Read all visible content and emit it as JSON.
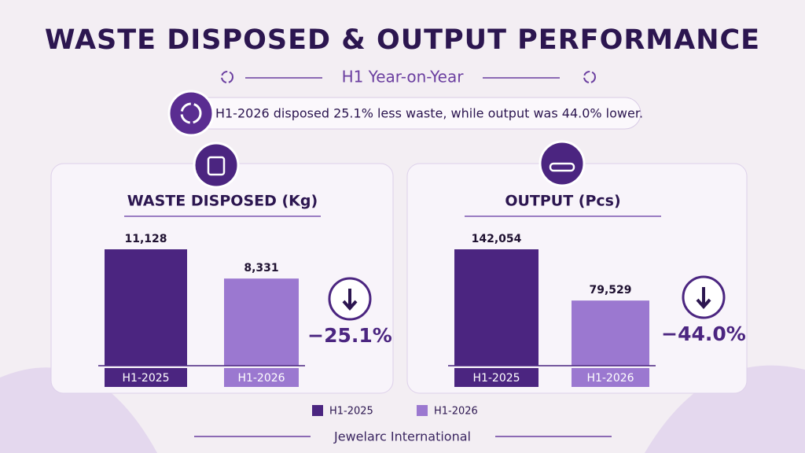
{
  "header": {
    "title": "WASTE DISPOSED & OUTPUT PERFORMANCE",
    "subtitle": "H1 Year-on-Year",
    "summary": "H1-2026 disposed 25.1% less waste, while output was 44.0% lower."
  },
  "chart_data": [
    {
      "type": "bar",
      "title": "WASTE DISPOSED (Kg)",
      "categories": [
        "H1-2025",
        "H1-2026"
      ],
      "values": [
        11128,
        8331
      ],
      "value_labels": [
        "11,128",
        "8,331"
      ],
      "colors": [
        "#4b2580",
        "#9b78d0"
      ],
      "annotation": "−25.1%"
    },
    {
      "type": "bar",
      "title": "OUTPUT (Pcs)",
      "categories": [
        "H1-2025",
        "H1-2026"
      ],
      "values": [
        142054,
        79529
      ],
      "value_labels": [
        "142,054",
        "79,529"
      ],
      "colors": [
        "#4b2580",
        "#9b78d0"
      ],
      "annotation": "−44.0%"
    }
  ],
  "legend": [
    {
      "name": "H1-2025",
      "color": "#4b2580"
    },
    {
      "name": "H1-2026",
      "color": "#9b78d0"
    }
  ],
  "footer": "Jewelarc International"
}
